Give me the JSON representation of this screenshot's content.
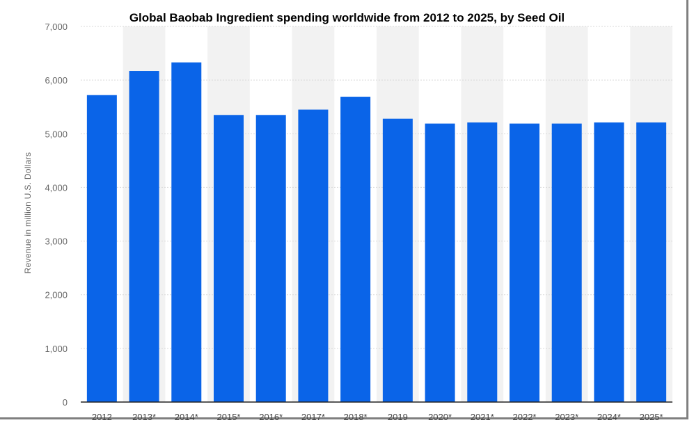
{
  "chart_data": {
    "type": "bar",
    "title": "Global Baobab Ingredient spending worldwide from 2012 to 2025, by Seed Oil",
    "xlabel": "",
    "ylabel": "Revenue in million U.S. Dollars",
    "categories": [
      "2012",
      "2013*",
      "2014*",
      "2015*",
      "2016*",
      "2017*",
      "2018*",
      "2019",
      "2020*",
      "2021*",
      "2022*",
      "2023*",
      "2024*",
      "2025*"
    ],
    "values": [
      5720,
      6170,
      6330,
      5350,
      5350,
      5450,
      5690,
      5280,
      5190,
      5210,
      5190,
      5190,
      5210,
      5210
    ],
    "ylim": [
      0,
      7000
    ],
    "yticks": [
      0,
      1000,
      2000,
      3000,
      4000,
      5000,
      6000,
      7000
    ],
    "ytick_labels": [
      "0",
      "1,000",
      "2,000",
      "3,000",
      "4,000",
      "5,000",
      "6,000",
      "7,000"
    ],
    "grid": true,
    "colors": {
      "bar": "#0a64e8",
      "band": "#f2f2f2",
      "grid": "#d9d9d9",
      "axis": "#222222"
    }
  }
}
